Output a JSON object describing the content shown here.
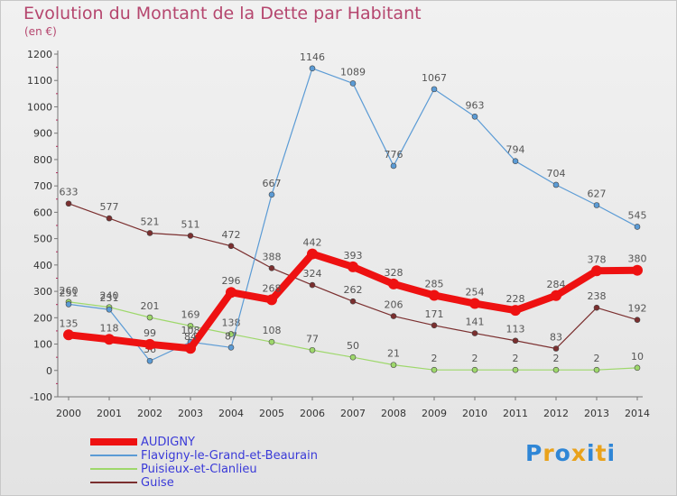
{
  "title": "Evolution du Montant de la Dette par Habitant",
  "subtitle": "(en €)",
  "brand": {
    "text": "Proxiti",
    "colors": [
      "#2f86d6",
      "#e9a21b",
      "#2f86d6",
      "#e9a21b",
      "#2f86d6",
      "#e9a21b",
      "#2f86d6"
    ]
  },
  "chart_data": {
    "type": "line",
    "x": [
      2000,
      2001,
      2002,
      2003,
      2004,
      2005,
      2006,
      2007,
      2008,
      2009,
      2010,
      2011,
      2012,
      2013,
      2014
    ],
    "ylim": [
      -100,
      1200
    ],
    "yticks": [
      -100,
      0,
      100,
      200,
      300,
      400,
      500,
      600,
      700,
      800,
      900,
      1000,
      1100,
      1200
    ],
    "grid": false,
    "legend": "bottom-left",
    "series": [
      {
        "name": "Guise",
        "color": "#7b2f2f",
        "values": [
          633,
          577,
          521,
          511,
          472,
          388,
          324,
          262,
          206,
          171,
          141,
          113,
          83,
          238,
          192
        ]
      },
      {
        "name": "Puisieux-et-Clanlieu",
        "color": "#9ed86b",
        "values": [
          260,
          240,
          201,
          169,
          138,
          108,
          77,
          50,
          21,
          2,
          2,
          2,
          2,
          2,
          10
        ]
      },
      {
        "name": "Flavigny-le-Grand-et-Beaurain",
        "color": "#5b9bd5",
        "values": [
          251,
          231,
          36,
          108,
          87,
          667,
          1146,
          1089,
          776,
          1067,
          963,
          794,
          704,
          627,
          545
        ]
      },
      {
        "name": "AUDIGNY",
        "color": "#ee1111",
        "values": [
          135,
          118,
          99,
          84,
          296,
          268,
          442,
          393,
          328,
          285,
          254,
          228,
          284,
          378,
          380
        ]
      }
    ]
  },
  "legend_order": [
    "AUDIGNY",
    "Flavigny-le-Grand-et-Beaurain",
    "Puisieux-et-Clanlieu",
    "Guise"
  ]
}
